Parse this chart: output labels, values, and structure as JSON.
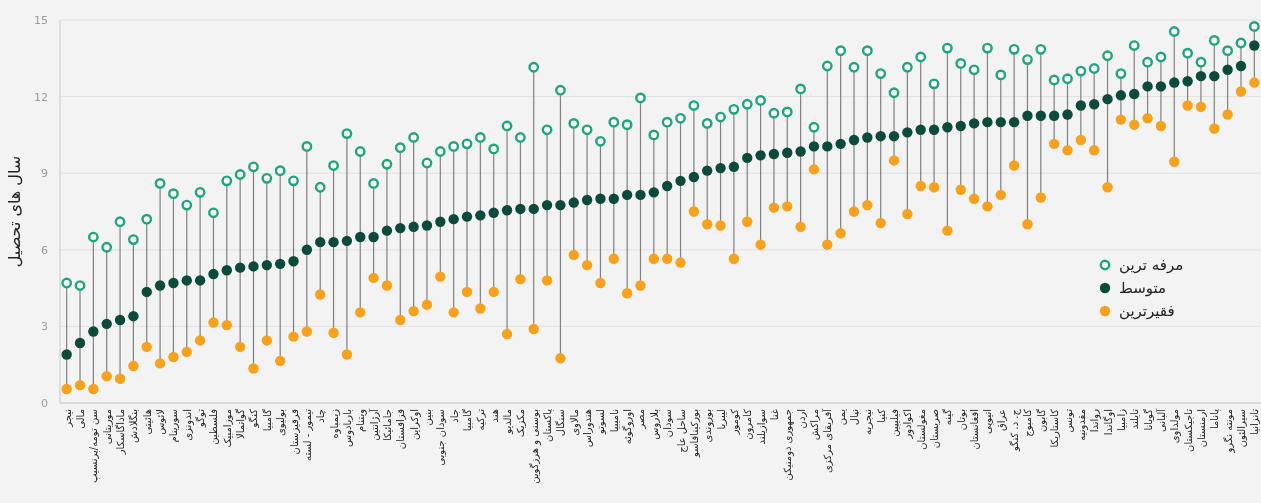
{
  "chart_data": {
    "type": "scatter",
    "ylabel": "سال های تحصیل",
    "ylim": [
      0,
      15
    ],
    "yticks": [
      0,
      3,
      6,
      9,
      12,
      15
    ],
    "grid": "y",
    "legend": "right",
    "marker": "circle",
    "categories": [
      "نیجر",
      "مالی",
      "سن تومه/پرنسیپ",
      "موریتانی",
      "ماداگاسکار",
      "بنگلادش",
      "هائیتی",
      "لائوس",
      "سورینام",
      "اندونزی",
      "توگو",
      "فلسطین",
      "موزامبیک",
      "گواتمالا",
      "کنگو",
      "گامبیا",
      "بولیوی",
      "قرقیزستان",
      "تیمور - لسته",
      "چاد",
      "زیمباوه",
      "باربادوس",
      "ویتنام",
      "آرژانتین",
      "جامائیکا",
      "قزاقستان",
      "اوکراین",
      "بنین",
      "سودان جنوبی",
      "جاد",
      "گامبیا",
      "ترکیه",
      "هند",
      "مالدیو",
      "مکزیک",
      "بوسنی و هرزگوین",
      "پاکستان",
      "سنگال",
      "مالاوی",
      "هندوراس",
      "لسوتو",
      "نامیبیا",
      "اوروگوئه",
      "مصر",
      "بلاروس",
      "سودان",
      "ساحل عاج",
      "بورکینافاسو",
      "بوروندی",
      "لیبریا",
      "کومور",
      "کامرون",
      "سوازیلند",
      "غنا",
      "جمهوری دومنیکن",
      "اردن",
      "مراکش",
      "آفریقای مرکزی",
      "یمن",
      "نپال",
      "نیجریه",
      "کنیا",
      "فیلیپین",
      "اکوادور",
      "مغولستان",
      "صربستان",
      "گینه",
      "بوتان",
      "افغانستان",
      "اتیوپی",
      "عراق",
      "ج. د. کنگو",
      "کامبوج",
      "گابون",
      "کاستاریکا",
      "تونس",
      "مقدونیه",
      "رواندا",
      "اوگاندا",
      "زامبیا",
      "تایلند",
      "گویانا",
      "آلبانی",
      "مولداوی",
      "تاجیکستان",
      "ارمنستان",
      "پاناما",
      "مونته نگرو",
      "سیرالئون",
      "تانزانیا"
    ],
    "series": [
      {
        "name": "مرفه ترین",
        "color": "#1fa57c",
        "values": [
          4.7,
          4.6,
          6.5,
          6.1,
          7.1,
          6.4,
          7.2,
          8.6,
          8.2,
          7.75,
          8.25,
          7.45,
          8.7,
          8.95,
          9.25,
          8.8,
          9.1,
          8.7,
          10.05,
          8.45,
          9.3,
          10.55,
          9.85,
          8.6,
          9.35,
          10.0,
          10.4,
          9.4,
          9.85,
          10.05,
          10.15,
          10.4,
          9.95,
          10.85,
          10.4,
          13.15,
          10.7,
          12.25,
          10.95,
          10.7,
          10.25,
          11.0,
          10.9,
          11.95,
          10.5,
          11.0,
          11.15,
          11.65,
          10.95,
          11.2,
          11.5,
          11.7,
          11.85,
          11.35,
          11.4,
          12.3,
          10.8,
          13.2,
          13.8,
          13.15,
          13.8,
          12.9,
          12.15,
          13.15,
          13.55,
          12.5,
          13.9,
          13.3,
          13.05,
          13.9,
          12.85,
          13.85,
          13.45,
          13.85,
          12.65,
          12.7,
          13.0,
          13.1,
          13.6,
          12.9,
          14.0,
          13.35,
          13.55,
          14.55,
          13.7,
          13.35,
          14.2,
          13.8,
          14.1,
          14.75
        ]
      },
      {
        "name": "متوسط",
        "color": "#0c4a3b",
        "values": [
          1.9,
          2.35,
          2.8,
          3.1,
          3.25,
          3.4,
          4.35,
          4.6,
          4.7,
          4.8,
          4.8,
          5.05,
          5.2,
          5.3,
          5.35,
          5.4,
          5.45,
          5.55,
          6.0,
          6.3,
          6.3,
          6.35,
          6.5,
          6.5,
          6.75,
          6.85,
          6.9,
          6.95,
          7.1,
          7.2,
          7.3,
          7.35,
          7.45,
          7.55,
          7.6,
          7.6,
          7.75,
          7.75,
          7.85,
          7.95,
          8.0,
          8.0,
          8.15,
          8.15,
          8.25,
          8.5,
          8.7,
          8.85,
          9.1,
          9.2,
          9.25,
          9.6,
          9.7,
          9.75,
          9.8,
          9.85,
          10.05,
          10.05,
          10.15,
          10.3,
          10.4,
          10.45,
          10.45,
          10.6,
          10.7,
          10.7,
          10.8,
          10.85,
          10.95,
          11.0,
          11.0,
          11.0,
          11.25,
          11.25,
          11.25,
          11.3,
          11.65,
          11.7,
          11.9,
          12.05,
          12.1,
          12.4,
          12.4,
          12.55,
          12.6,
          12.8,
          12.8,
          13.05,
          13.2,
          14.0
        ]
      },
      {
        "name": "فقیرترین",
        "color": "#f7a11d",
        "values": [
          0.55,
          0.7,
          0.55,
          1.05,
          0.95,
          1.45,
          2.2,
          1.55,
          1.8,
          2.0,
          2.45,
          3.15,
          3.05,
          2.2,
          1.35,
          2.45,
          1.65,
          2.6,
          2.8,
          4.25,
          2.75,
          1.9,
          3.55,
          4.9,
          4.6,
          3.25,
          3.6,
          3.85,
          4.95,
          3.55,
          4.35,
          3.7,
          4.35,
          2.7,
          4.85,
          2.9,
          4.8,
          1.75,
          5.8,
          5.4,
          4.7,
          5.65,
          4.3,
          4.6,
          5.65,
          5.65,
          5.5,
          7.5,
          7.0,
          6.95,
          5.65,
          7.1,
          6.2,
          7.65,
          7.7,
          6.9,
          9.15,
          6.2,
          6.65,
          7.5,
          7.75,
          7.05,
          9.5,
          7.4,
          8.5,
          8.45,
          6.75,
          8.35,
          8.0,
          7.7,
          8.15,
          9.3,
          7.0,
          8.05,
          10.15,
          9.9,
          10.3,
          9.9,
          8.45,
          11.1,
          10.9,
          11.15,
          10.85,
          9.45,
          11.65,
          11.6,
          10.75,
          11.3,
          12.2,
          12.55
        ]
      }
    ]
  }
}
